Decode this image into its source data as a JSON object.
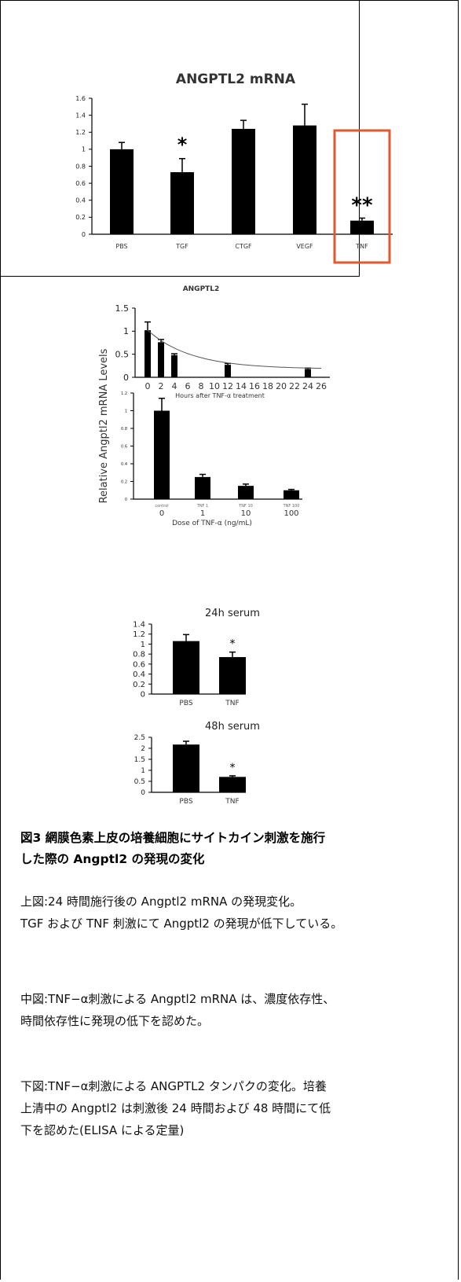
{
  "chart_data": [
    {
      "type": "bar",
      "title": "ANGPTL2 mRNA",
      "categories": [
        "PBS",
        "TGF",
        "CTGF",
        "VEGF",
        "TNF"
      ],
      "values": [
        1.0,
        0.73,
        1.24,
        1.28,
        0.16
      ],
      "errors": [
        0.08,
        0.16,
        0.1,
        0.25,
        0.03
      ],
      "significance": [
        "",
        "*",
        "",
        "",
        "**"
      ],
      "highlight": "TNF",
      "highlight_color": "#e2582f",
      "ylim": [
        0,
        1.6
      ],
      "yticks": [
        "0",
        "0.2",
        "0.4",
        "0.6",
        "0.8",
        "1",
        "1.2",
        "1.4",
        "1.6"
      ],
      "xlabel": "",
      "ylabel": ""
    },
    {
      "type": "bar",
      "title": "ANGPTL2",
      "ylabel": "Relative Angptl2 mRNA Levels",
      "xlabel": "Hours after TNF-α treatment",
      "x": [
        0,
        2,
        4,
        12,
        24
      ],
      "values": [
        1.02,
        0.76,
        0.48,
        0.27,
        0.18
      ],
      "errors": [
        0.18,
        0.06,
        0.03,
        0.03,
        0.02
      ],
      "xticks": [
        "0",
        "2",
        "4",
        "6",
        "8",
        "10",
        "12",
        "14",
        "16",
        "18",
        "20",
        "22",
        "24",
        "26"
      ],
      "ylim": [
        0,
        1.5
      ],
      "yticks": [
        "0",
        "0.5",
        "1",
        "1.5"
      ],
      "trendline": "decay"
    },
    {
      "type": "bar",
      "xlabel": "Dose of TNF-α (ng/mL)",
      "categories": [
        "0",
        "1",
        "10",
        "100"
      ],
      "category_sublabels": [
        "control",
        "TNF 1",
        "TNF 10",
        "TNF 100"
      ],
      "values": [
        1.0,
        0.25,
        0.15,
        0.1
      ],
      "errors": [
        0.14,
        0.03,
        0.02,
        0.01
      ],
      "ylim": [
        0,
        1.2
      ],
      "yticks": [
        "0",
        "0.2",
        "0.4",
        "0.6",
        "0.8",
        "1",
        "1.2"
      ]
    },
    {
      "type": "bar",
      "title": "24h serum",
      "categories": [
        "PBS",
        "TNF"
      ],
      "values": [
        1.06,
        0.74
      ],
      "errors": [
        0.13,
        0.1
      ],
      "significance": [
        "",
        "*"
      ],
      "ylim": [
        0,
        1.4
      ],
      "yticks": [
        "0",
        "0.2",
        "0.4",
        "0.6",
        "0.8",
        "1",
        "1.2",
        "1.4"
      ]
    },
    {
      "type": "bar",
      "title": "48h serum",
      "categories": [
        "PBS",
        "TNF"
      ],
      "values": [
        2.17,
        0.7
      ],
      "errors": [
        0.15,
        0.05
      ],
      "significance": [
        "",
        "*"
      ],
      "ylim": [
        0,
        2.5
      ],
      "yticks": [
        "0",
        "0.5",
        "1",
        "1.5",
        "2",
        "2.5"
      ]
    }
  ],
  "caption": {
    "title_line1": "図3 網膜色素上皮の培養細胞にサイトカイン刺激を施行",
    "title_line2": "した際の Angptl2 の発現の変化"
  },
  "paragraphs": {
    "top": [
      "上図:24 時間施行後の Angptl2 mRNA の発現変化。",
      "TGF および TNF 刺激にて Angptl2 の発現が低下している。"
    ],
    "middle": [
      "中図:TNF−α刺激による Angptl2 mRNA は、濃度依存性、",
      "時間依存性に発現の低下を認めた。"
    ],
    "bottom": [
      "下図:TNF−α刺激による ANGPTL2 タンパクの変化。培養",
      "上清中の Angptl2 は刺激後 24 時間および 48 時間にて低",
      "下を認めた(ELISA による定量)"
    ]
  }
}
